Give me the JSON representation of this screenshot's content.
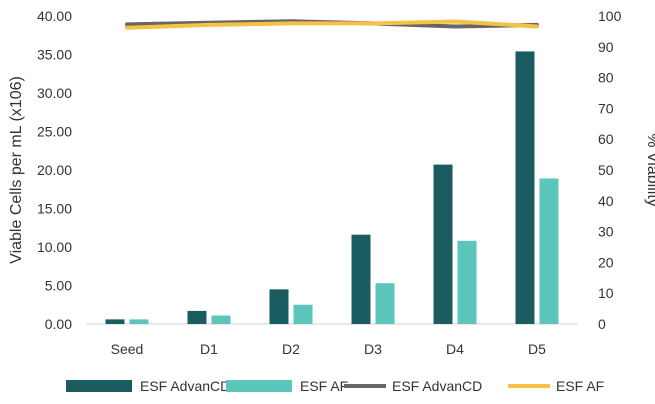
{
  "chart_data": {
    "type": "bar",
    "categories": [
      "Seed",
      "D1",
      "D2",
      "D3",
      "D4",
      "D5"
    ],
    "left_axis": {
      "label": "Viable Cells per mL (x106)",
      "ticks": [
        "0.00",
        "5.00",
        "10.00",
        "15.00",
        "20.00",
        "25.00",
        "30.00",
        "35.00",
        "40.00"
      ],
      "range": [
        0,
        40
      ]
    },
    "right_axis": {
      "label": "% Viability",
      "ticks": [
        "0",
        "10",
        "20",
        "30",
        "40",
        "50",
        "60",
        "70",
        "80",
        "90",
        "100"
      ],
      "range": [
        0,
        100
      ]
    },
    "bar_series": [
      {
        "name": "ESF AdvanCD",
        "color": "#1a5c60",
        "values": [
          0.6,
          1.7,
          4.5,
          11.6,
          20.7,
          35.4
        ]
      },
      {
        "name": "ESF AF",
        "color": "#5cc6bd",
        "values": [
          0.6,
          1.1,
          2.5,
          5.3,
          10.8,
          18.9
        ]
      }
    ],
    "line_series": [
      {
        "name": "ESF AdvanCD",
        "color": "#666666",
        "values": [
          97.3,
          97.8,
          98.3,
          97.6,
          96.6,
          97.1
        ]
      },
      {
        "name": "ESF AF",
        "color": "#f5c242",
        "values": [
          96.2,
          97.1,
          97.6,
          97.6,
          98.2,
          96.6
        ]
      }
    ],
    "grid": false,
    "legend_position": "bottom"
  }
}
